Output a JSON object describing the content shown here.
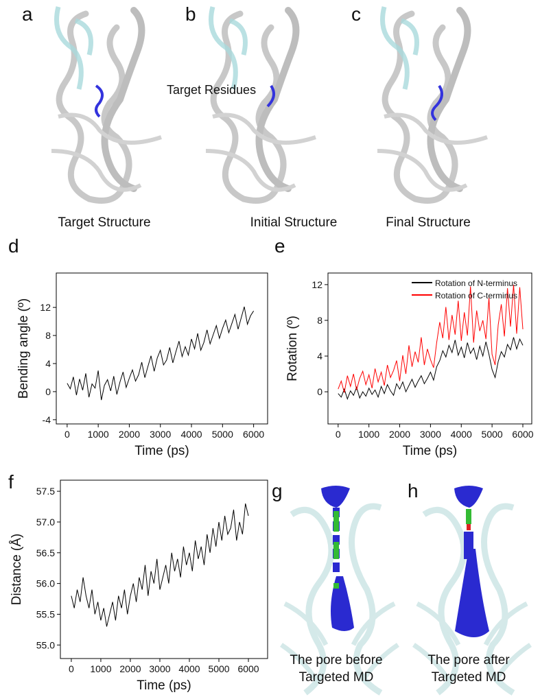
{
  "panel_labels": [
    "a",
    "b",
    "c",
    "g",
    "h"
  ],
  "annotation": "Target Residues",
  "structure_captions": [
    "Target Structure",
    "Initial Structure",
    "Final Structure"
  ],
  "pore_captions": [
    [
      "The pore before",
      "Targeted MD"
    ],
    [
      "The pore after",
      "Targeted MD"
    ]
  ],
  "chart_data": [
    {
      "type": "line",
      "panel": "d",
      "xlabel": "Time (ps)",
      "ylabel": "Bending angle (º)",
      "color": "#000000",
      "xlim": [
        -350,
        6450
      ],
      "ylim": [
        -4.6,
        16.9
      ],
      "xticks": [
        0,
        1000,
        2000,
        3000,
        4000,
        5000,
        6000
      ],
      "yticks": [
        -4,
        0,
        4,
        8,
        12
      ],
      "x": [
        0,
        100,
        200,
        300,
        400,
        500,
        600,
        700,
        800,
        900,
        1000,
        1100,
        1200,
        1300,
        1400,
        1500,
        1600,
        1700,
        1800,
        1900,
        2000,
        2100,
        2200,
        2300,
        2400,
        2500,
        2600,
        2700,
        2800,
        2900,
        3000,
        3100,
        3200,
        3300,
        3400,
        3500,
        3600,
        3700,
        3800,
        3900,
        4000,
        4100,
        4200,
        4300,
        4400,
        4500,
        4600,
        4700,
        4800,
        4900,
        5000,
        5100,
        5200,
        5300,
        5400,
        5500,
        5600,
        5700,
        5800,
        5900,
        6000
      ],
      "values": [
        1.2,
        0.4,
        2.1,
        -0.5,
        1.8,
        0.2,
        2.6,
        -0.8,
        1.1,
        0.5,
        3.0,
        -1.2,
        0.9,
        1.7,
        0.1,
        2.2,
        -0.4,
        1.4,
        2.8,
        0.6,
        1.9,
        3.1,
        1.5,
        2.4,
        4.2,
        2.0,
        3.6,
        5.1,
        2.9,
        4.8,
        5.9,
        3.8,
        4.5,
        6.3,
        4.1,
        5.7,
        7.2,
        5.0,
        6.4,
        5.2,
        7.5,
        6.1,
        8.3,
        5.9,
        7.0,
        8.8,
        6.8,
        8.1,
        9.4,
        7.6,
        9.0,
        10.2,
        8.4,
        9.7,
        11.0,
        8.9,
        10.5,
        12.1,
        9.6,
        10.8,
        11.5
      ]
    },
    {
      "type": "line",
      "panel": "e",
      "xlabel": "Time (ps)",
      "ylabel": "Rotation (º)",
      "legend": "upper right",
      "xlim": [
        -330,
        6290
      ],
      "ylim": [
        -3.6,
        13.3
      ],
      "xticks": [
        0,
        1000,
        2000,
        3000,
        4000,
        5000,
        6000
      ],
      "yticks": [
        0,
        4,
        8,
        12
      ],
      "x": [
        0,
        100,
        200,
        300,
        400,
        500,
        600,
        700,
        800,
        900,
        1000,
        1100,
        1200,
        1300,
        1400,
        1500,
        1600,
        1700,
        1800,
        1900,
        2000,
        2100,
        2200,
        2300,
        2400,
        2500,
        2600,
        2700,
        2800,
        2900,
        3000,
        3100,
        3200,
        3300,
        3400,
        3500,
        3600,
        3700,
        3800,
        3900,
        4000,
        4100,
        4200,
        4300,
        4400,
        4500,
        4600,
        4700,
        4800,
        4900,
        5000,
        5100,
        5200,
        5300,
        5400,
        5500,
        5600,
        5700,
        5800,
        5900,
        6000
      ],
      "series": [
        {
          "name": "Rotation of N-terminus",
          "color": "#000000",
          "values": [
            -0.2,
            -0.6,
            0.3,
            -0.8,
            0.1,
            -0.4,
            0.5,
            -0.7,
            0.0,
            -0.5,
            0.4,
            -0.3,
            0.2,
            -0.6,
            0.6,
            -0.2,
            0.8,
            0.1,
            -0.4,
            0.9,
            0.3,
            1.1,
            0.0,
            0.7,
            1.4,
            0.5,
            1.2,
            1.8,
            0.9,
            1.5,
            2.2,
            1.3,
            2.8,
            3.5,
            4.6,
            3.9,
            5.2,
            4.4,
            5.8,
            4.1,
            5.0,
            3.8,
            5.5,
            4.3,
            4.9,
            3.6,
            5.1,
            4.0,
            5.6,
            4.2,
            2.5,
            1.6,
            3.4,
            4.5,
            3.9,
            5.3,
            4.7,
            6.1,
            4.8,
            5.9,
            5.2
          ]
        },
        {
          "name": "Rotation of C-terminus",
          "color": "#ff0000",
          "values": [
            0.3,
            1.2,
            -0.1,
            1.8,
            0.6,
            2.0,
            0.2,
            1.5,
            2.3,
            0.8,
            1.9,
            0.4,
            2.6,
            1.1,
            2.2,
            0.7,
            3.0,
            1.6,
            2.4,
            3.5,
            1.2,
            4.1,
            2.0,
            5.2,
            2.8,
            4.5,
            3.3,
            6.1,
            3.0,
            4.8,
            3.6,
            2.7,
            5.5,
            7.8,
            6.0,
            9.5,
            5.8,
            8.6,
            6.4,
            10.2,
            5.7,
            8.9,
            6.3,
            11.8,
            5.5,
            9.1,
            6.8,
            8.0,
            5.9,
            10.5,
            4.2,
            3.0,
            7.5,
            9.8,
            6.2,
            11.6,
            7.3,
            12.0,
            6.5,
            11.7,
            7.0
          ]
        }
      ]
    },
    {
      "type": "line",
      "panel": "f",
      "xlabel": "Time (ps)",
      "ylabel": "Distance (Å)",
      "color": "#000000",
      "xlim": [
        -370,
        6650
      ],
      "ylim": [
        54.78,
        57.68
      ],
      "xticks": [
        0,
        1000,
        2000,
        3000,
        4000,
        5000,
        6000
      ],
      "yticks": [
        {
          "value": 55,
          "label": "55.0"
        },
        55.5,
        {
          "value": 56,
          "label": "56.0"
        },
        56.5,
        {
          "value": 57,
          "label": "57.0"
        },
        57.5
      ],
      "x": [
        0,
        100,
        200,
        300,
        400,
        500,
        600,
        700,
        800,
        900,
        1000,
        1100,
        1200,
        1300,
        1400,
        1500,
        1600,
        1700,
        1800,
        1900,
        2000,
        2100,
        2200,
        2300,
        2400,
        2500,
        2600,
        2700,
        2800,
        2900,
        3000,
        3100,
        3200,
        3300,
        3400,
        3500,
        3600,
        3700,
        3800,
        3900,
        4000,
        4100,
        4200,
        4300,
        4400,
        4500,
        4600,
        4700,
        4800,
        4900,
        5000,
        5100,
        5200,
        5300,
        5400,
        5500,
        5600,
        5700,
        5800,
        5900,
        6000
      ],
      "values": [
        55.8,
        55.6,
        55.9,
        55.7,
        56.1,
        55.8,
        55.6,
        55.9,
        55.5,
        55.7,
        55.4,
        55.6,
        55.3,
        55.5,
        55.7,
        55.4,
        55.8,
        55.6,
        55.9,
        55.5,
        55.8,
        56.0,
        55.7,
        56.1,
        55.9,
        56.3,
        55.8,
        56.2,
        56.0,
        56.4,
        55.9,
        56.1,
        56.3,
        56.0,
        56.5,
        56.2,
        56.4,
        56.1,
        56.6,
        56.3,
        56.5,
        56.2,
        56.7,
        56.4,
        56.6,
        56.3,
        56.8,
        56.5,
        56.9,
        56.6,
        57.0,
        56.7,
        57.1,
        56.8,
        56.9,
        57.2,
        56.7,
        57.0,
        56.8,
        57.3,
        57.1
      ]
    }
  ]
}
